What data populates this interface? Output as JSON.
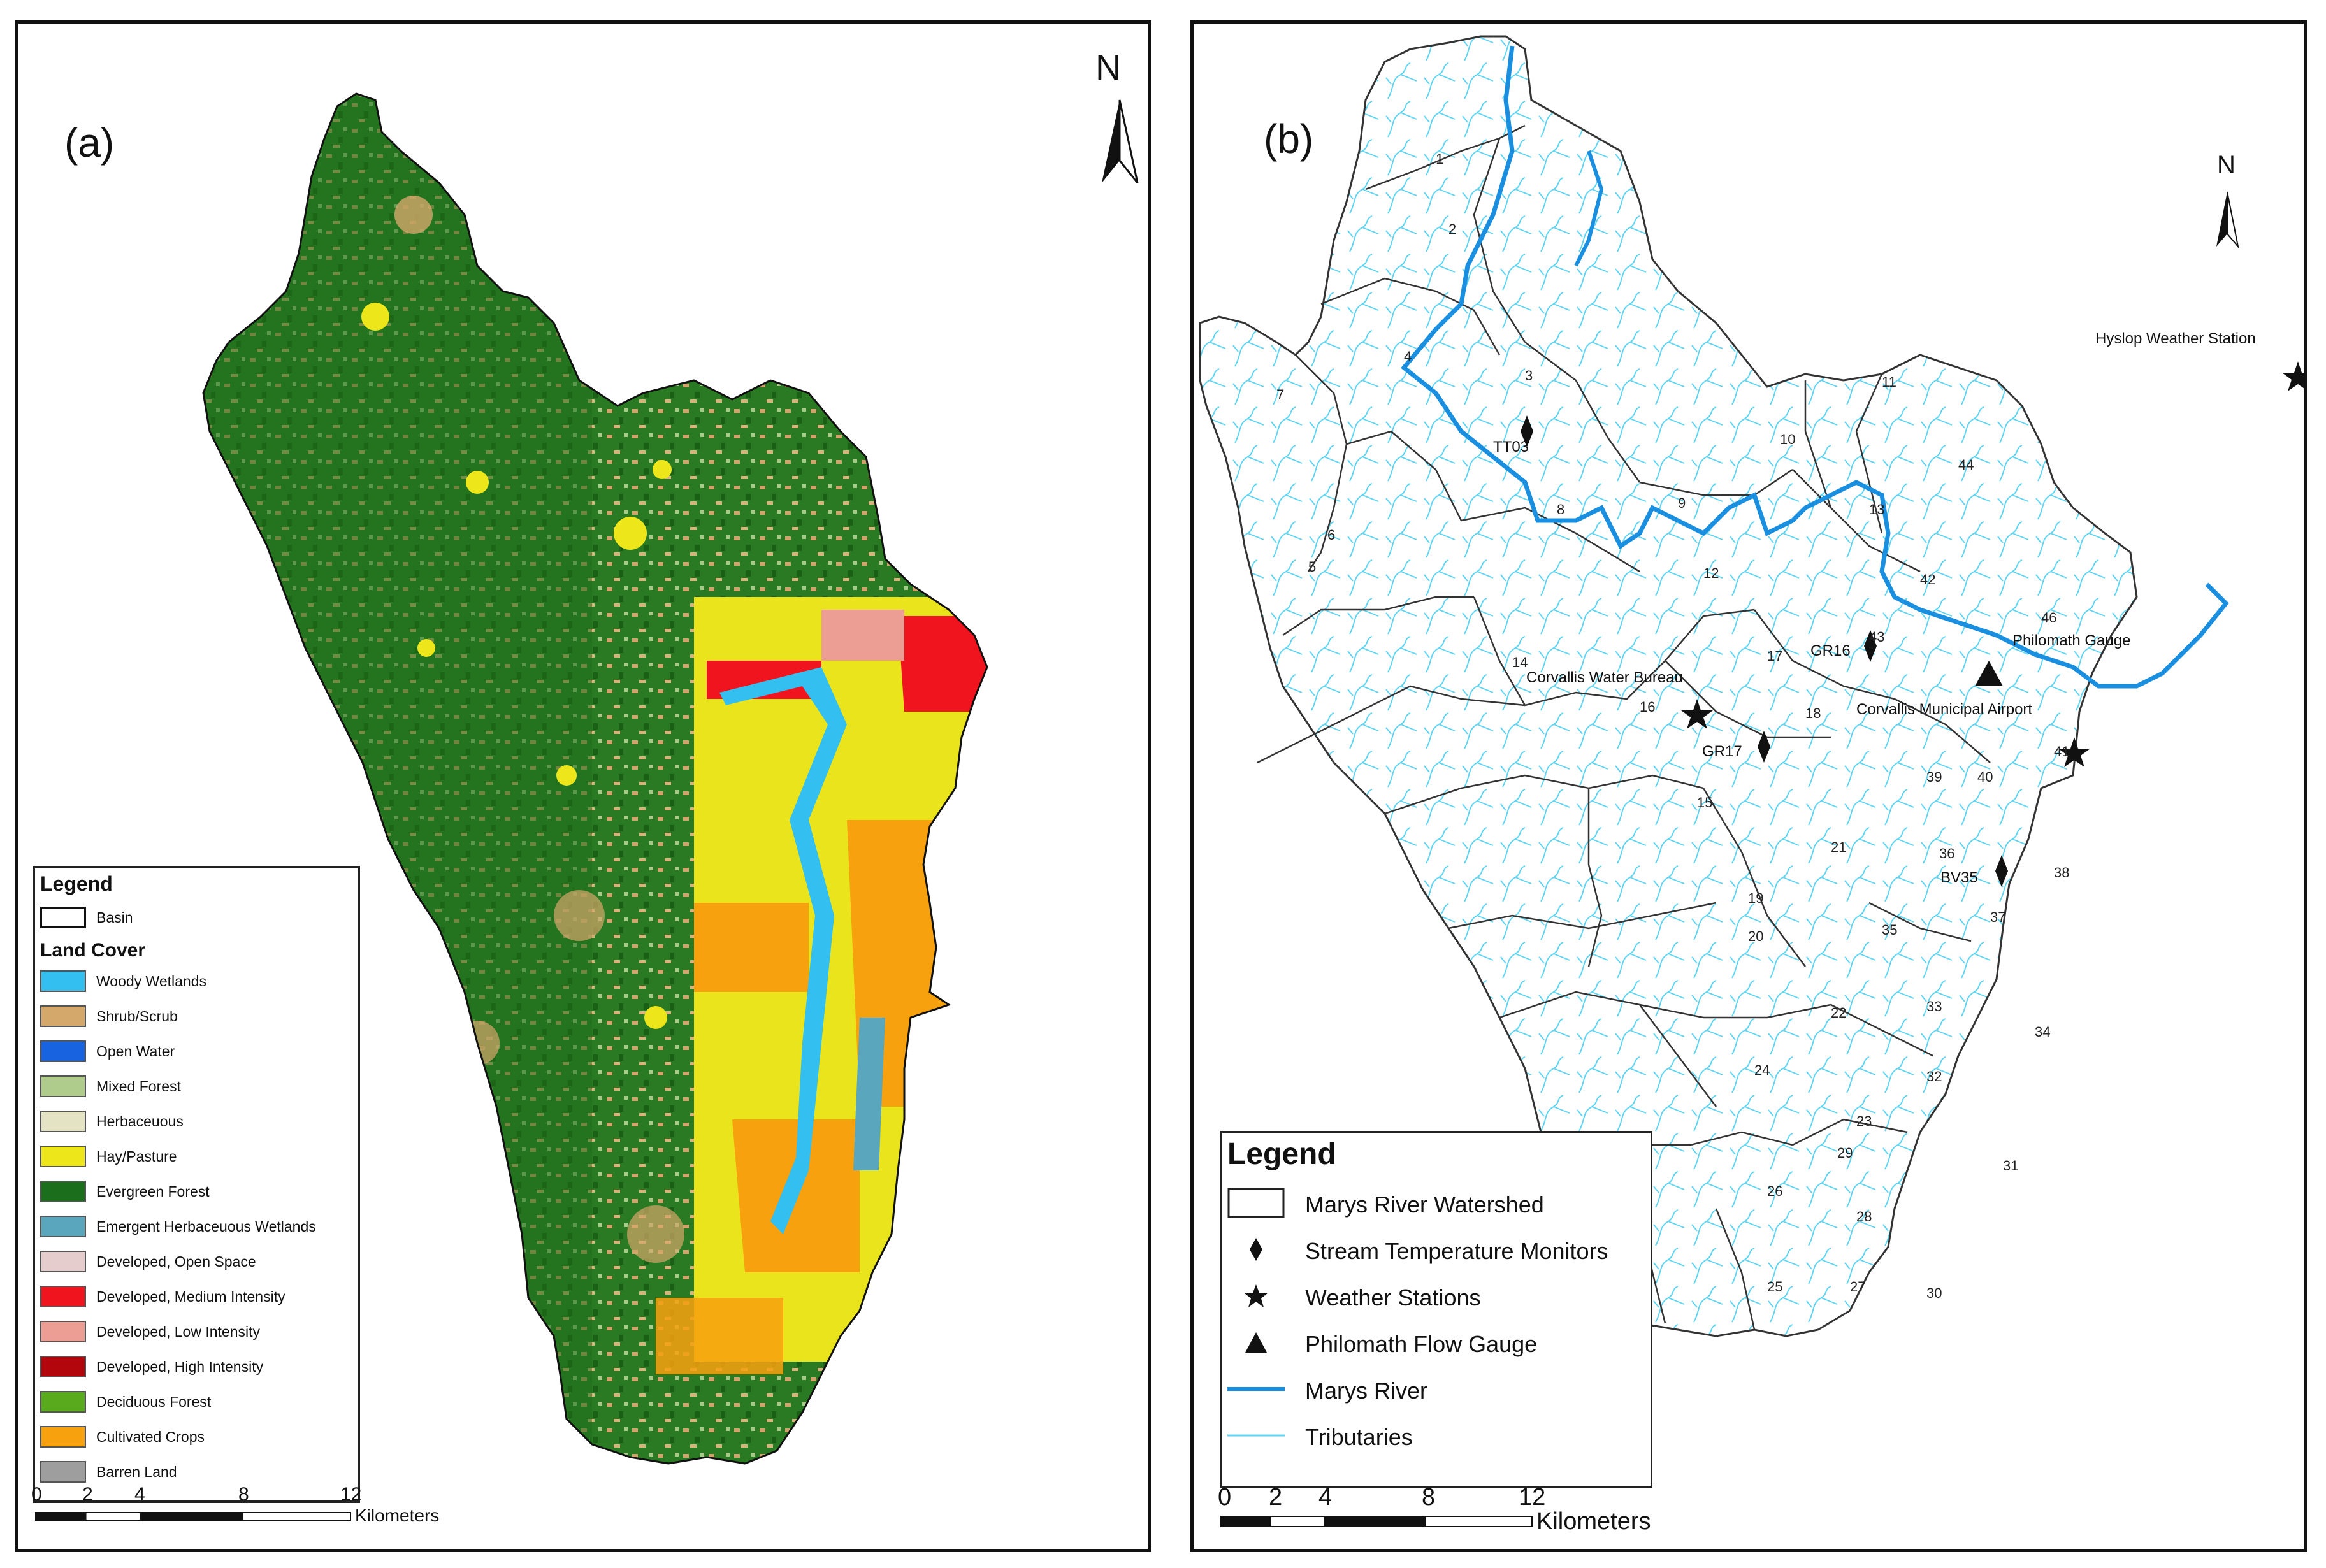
{
  "panel_a": {
    "label": "(a)",
    "north": "N",
    "legend": {
      "title": "Legend",
      "basin_label": "Basin",
      "section_title": "Land Cover",
      "classes": [
        {
          "name": "Woody Wetlands",
          "color": "#33bff0"
        },
        {
          "name": "Shrub/Scrub",
          "color": "#d4a76a"
        },
        {
          "name": "Open Water",
          "color": "#1763e0"
        },
        {
          "name": "Mixed Forest",
          "color": "#b0cc8c"
        },
        {
          "name": "Herbaceuous",
          "color": "#e4e3c4"
        },
        {
          "name": "Hay/Pasture",
          "color": "#ece61a"
        },
        {
          "name": "Evergreen Forest",
          "color": "#1a6e1c"
        },
        {
          "name": "Emergent Herbaceuous Wetlands",
          "color": "#5aa6bd"
        },
        {
          "name": "Developed, Open Space",
          "color": "#e6cdcd"
        },
        {
          "name": "Developed, Medium Intensity",
          "color": "#f0141e"
        },
        {
          "name": "Developed, Low Intensity",
          "color": "#ec9e94"
        },
        {
          "name": "Developed, High Intensity",
          "color": "#b3060c"
        },
        {
          "name": "Deciduous Forest",
          "color": "#5aaa1e"
        },
        {
          "name": "Cultivated Crops",
          "color": "#f7a10e"
        },
        {
          "name": "Barren Land",
          "color": "#9f9e9e"
        }
      ]
    },
    "scale": {
      "ticks": [
        "0",
        "2",
        "4",
        "8",
        "12"
      ],
      "unit": "Kilometers"
    }
  },
  "panel_b": {
    "label": "(b)",
    "north": "N",
    "subbasin_numbers": [
      "1",
      "2",
      "3",
      "4",
      "5",
      "6",
      "7",
      "8",
      "9",
      "10",
      "11",
      "12",
      "13",
      "14",
      "15",
      "16",
      "17",
      "18",
      "19",
      "20",
      "21",
      "22",
      "23",
      "24",
      "25",
      "26",
      "27",
      "28",
      "29",
      "30",
      "31",
      "32",
      "33",
      "34",
      "35",
      "36",
      "37",
      "38",
      "39",
      "40",
      "41",
      "42",
      "43",
      "44",
      "46"
    ],
    "monitors": [
      "TT03",
      "GR16",
      "GR17",
      "BV35"
    ],
    "features": {
      "hyslop": "Hyslop Weather Station",
      "corvallis_water": "Corvallis Water Bureau",
      "philomath": "Philomath Gauge",
      "airport": "Corvallis Municipal Airport"
    },
    "legend": {
      "title": "Legend",
      "items": [
        {
          "label": "Marys River Watershed",
          "symbol": "box"
        },
        {
          "label": "Stream Temperature Monitors",
          "symbol": "diamond"
        },
        {
          "label": "Weather Stations",
          "symbol": "star"
        },
        {
          "label": "Philomath Flow Gauge",
          "symbol": "triangle"
        },
        {
          "label": "Marys River",
          "symbol": "river"
        },
        {
          "label": "Tributaries",
          "symbol": "tributary"
        }
      ]
    },
    "scale": {
      "ticks": [
        "0",
        "2",
        "4",
        "8",
        "12"
      ],
      "unit": "Kilometers"
    },
    "colors": {
      "river": "#1a8fe0",
      "tributary": "#5fd4f2",
      "boundary": "#333333"
    }
  }
}
